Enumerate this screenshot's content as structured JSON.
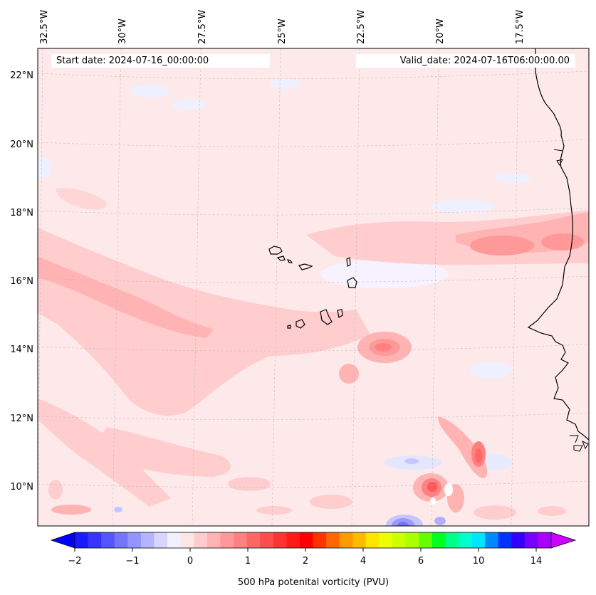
{
  "header": {
    "start_date": "Start date: 2024-07-16_00:00:00",
    "valid_date": "Valid_date: 2024-07-16T06:00:00.00"
  },
  "map": {
    "lon_labels": [
      "32.5°W",
      "30°W",
      "27.5°W",
      "25°W",
      "22.5°W",
      "20°W",
      "17.5°W"
    ],
    "lat_labels": [
      "22°N",
      "20°N",
      "18°N",
      "16°N",
      "14°N",
      "12°N",
      "10°N"
    ],
    "gridlines": true
  },
  "colorbar": {
    "label": "500 hPa potenital vorticity (PVU)",
    "tick_labels": [
      "−2",
      "−1",
      "0",
      "1",
      "2",
      "4",
      "6",
      "10",
      "14"
    ],
    "colors": [
      "#1a1aff",
      "#3535ff",
      "#5555ff",
      "#7474ff",
      "#9494ff",
      "#b5b5ff",
      "#d6d6ff",
      "#f0f0ff",
      "#ffe6e6",
      "#ffcccc",
      "#ffb3b3",
      "#ff9999",
      "#ff8080",
      "#ff6666",
      "#ff4d4d",
      "#ff3333",
      "#ff1a1a",
      "#ff0000",
      "#ff3300",
      "#ff6600",
      "#ff9900",
      "#ffbb00",
      "#ffe600",
      "#eaff00",
      "#ccff00",
      "#aaff00",
      "#66ff00",
      "#00ff22",
      "#00ff88",
      "#00ffcc",
      "#00e5ff",
      "#0088ff",
      "#0033ff",
      "#3300ff",
      "#7700ff",
      "#aa00ff"
    ],
    "under_color": "#0000ff",
    "over_color": "#cc00ff"
  }
}
